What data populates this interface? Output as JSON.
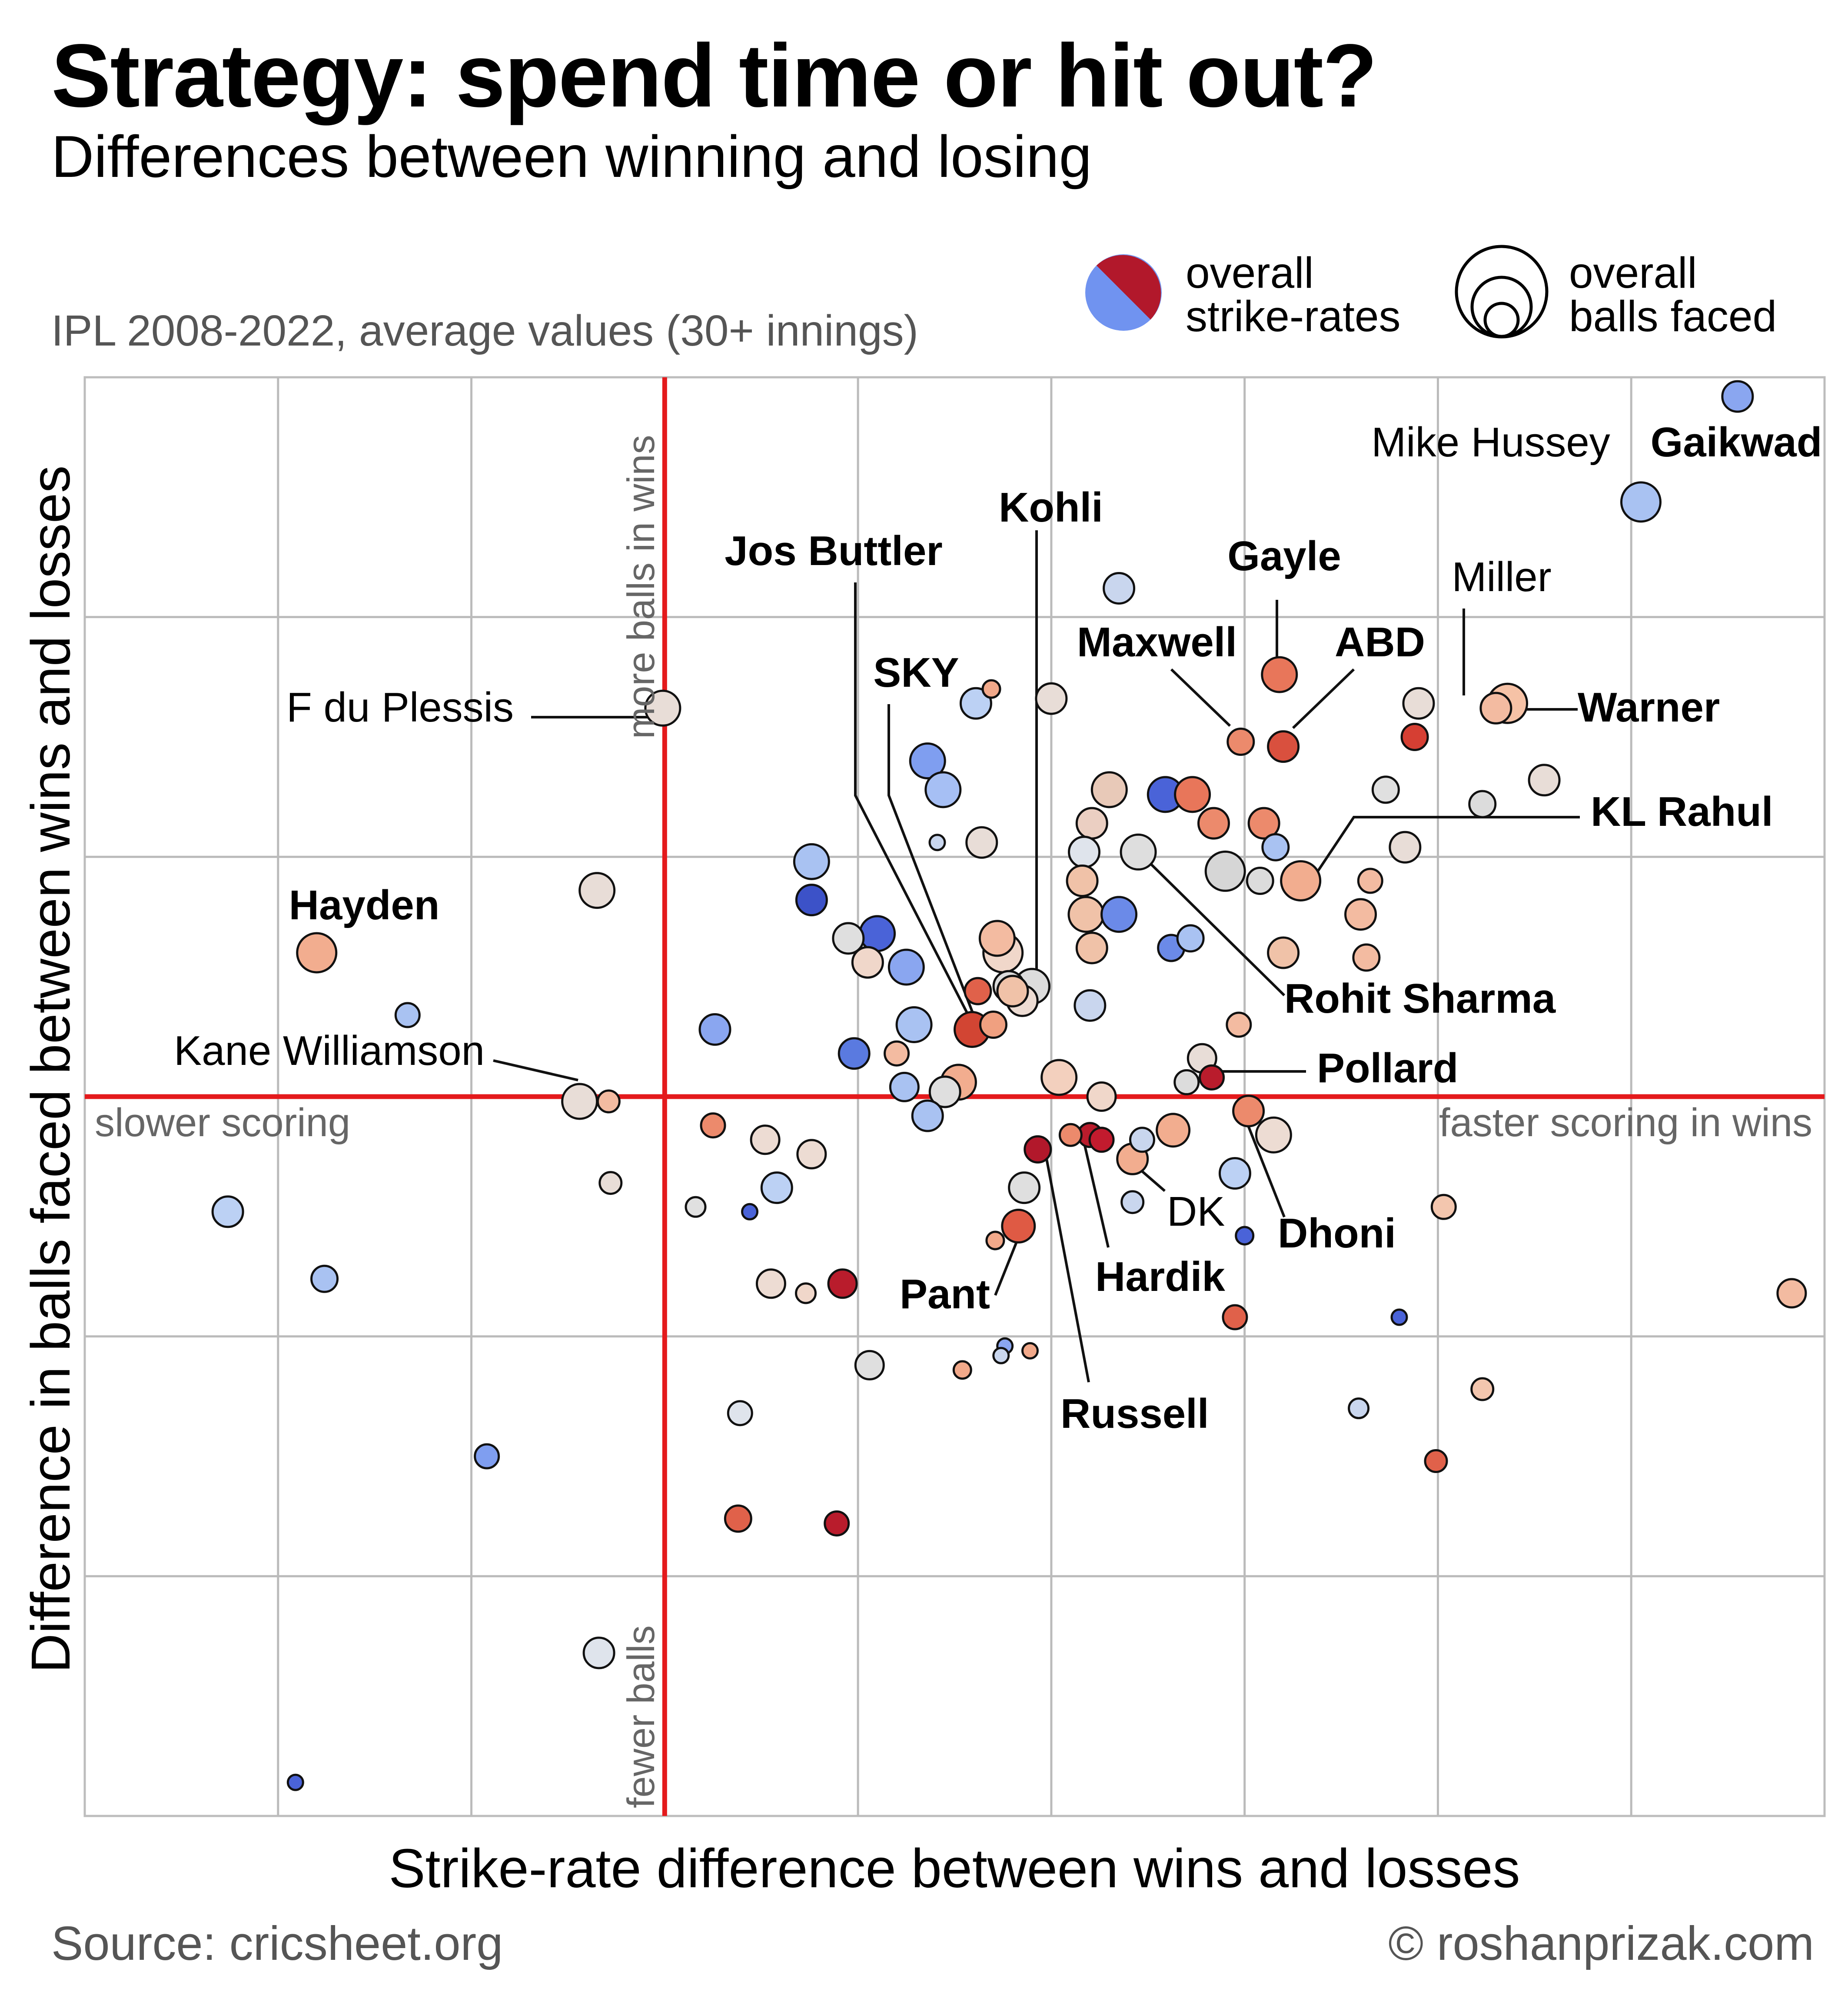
{
  "header": {
    "title": "Strategy: spend time or hit out?",
    "subtitle": "Differences between winning and losing",
    "note": "IPL 2008-2022, average values (30+ innings)"
  },
  "legend": {
    "color_label": [
      "overall",
      "strike-rates"
    ],
    "size_label": [
      "overall",
      "balls faced"
    ]
  },
  "footer": {
    "source": "Source: cricsheet.org",
    "credit": "© roshanprizak.com"
  },
  "colors": {
    "high_strike_rate": "#b2182b",
    "low_strike_rate": "#3b4cc0",
    "accent_line": "#e41a1c",
    "grid": "#bbbbbb"
  },
  "chart_data": {
    "type": "scatter",
    "title": "Strategy: spend time or hit out?",
    "subtitle": "Differences between winning and losing",
    "xlabel": "Strike-rate difference between wins and losses",
    "ylabel": "Difference in balls faced between wins and losses",
    "xlim": [
      -30,
      60
    ],
    "ylim": [
      -15,
      15
    ],
    "grid": true,
    "legend_position": "top-right",
    "quadrant_labels": {
      "right": "faster scoring in wins",
      "left": "slower scoring",
      "top": "more balls in wins",
      "bottom": "fewer balls"
    },
    "points": [
      {
        "x": 55.5,
        "y": 14.6,
        "size": 70,
        "color": "#8aa6f0",
        "label": "Gaikwad",
        "bold": true
      },
      {
        "x": 50.5,
        "y": 12.4,
        "size": 90,
        "color": "#a9c2f2",
        "label": "Mike Hussey",
        "bold": false
      },
      {
        "x": 23.5,
        "y": 10.6,
        "size": 70,
        "color": "#c9d6ee",
        "label": "",
        "bold": false
      },
      {
        "x": 31.8,
        "y": 8.8,
        "size": 80,
        "color": "#e8765a",
        "label": "Gayle",
        "bold": true
      },
      {
        "x": 43.0,
        "y": 8.1,
        "size": 70,
        "color": "#f3bba1",
        "label": "Miller",
        "bold": false
      },
      {
        "x": 43.6,
        "y": 8.2,
        "size": 90,
        "color": "#f6c2a6",
        "label": "Warner",
        "bold": true
      },
      {
        "x": 29.8,
        "y": 7.4,
        "size": 60,
        "color": "#ec8a6c",
        "label": "Maxwell",
        "bold": true
      },
      {
        "x": 32.0,
        "y": 7.3,
        "size": 70,
        "color": "#d9503e",
        "label": "ABD",
        "bold": true
      },
      {
        "x": 39.0,
        "y": 8.2,
        "size": 70,
        "color": "#e8ddd7",
        "label": "",
        "bold": false
      },
      {
        "x": 38.8,
        "y": 7.5,
        "size": 60,
        "color": "#d63f33",
        "label": "",
        "bold": false
      },
      {
        "x": 45.5,
        "y": 6.6,
        "size": 70,
        "color": "#e8ddd7",
        "label": "",
        "bold": false
      },
      {
        "x": 37.3,
        "y": 6.4,
        "size": 60,
        "color": "#e0e0e0",
        "label": "",
        "bold": false
      },
      {
        "x": 42.3,
        "y": 6.1,
        "size": 60,
        "color": "#dcdcdc",
        "label": "",
        "bold": false
      },
      {
        "x": 20.0,
        "y": 8.3,
        "size": 70,
        "color": "#e8ddd7",
        "label": "",
        "bold": false
      },
      {
        "x": -0.1,
        "y": 8.1,
        "size": 80,
        "color": "#e8ddd7",
        "label": "F du Plessis",
        "bold": false
      },
      {
        "x": 16.1,
        "y": 8.2,
        "size": 70,
        "color": "#bcd1f4",
        "label": "SKY",
        "bold": true
      },
      {
        "x": 16.9,
        "y": 8.5,
        "size": 40,
        "color": "#f2a98a",
        "label": "",
        "bold": false
      },
      {
        "x": 13.6,
        "y": 7.0,
        "size": 80,
        "color": "#7f9ef0",
        "label": "",
        "bold": false
      },
      {
        "x": 14.4,
        "y": 6.4,
        "size": 80,
        "color": "#a6bff4",
        "label": "",
        "bold": false
      },
      {
        "x": 14.1,
        "y": 5.3,
        "size": 35,
        "color": "#c9d6ee",
        "label": "",
        "bold": false
      },
      {
        "x": 23.0,
        "y": 6.4,
        "size": 80,
        "color": "#e8c9b8",
        "label": "",
        "bold": false
      },
      {
        "x": 25.9,
        "y": 6.3,
        "size": 80,
        "color": "#4a63d8",
        "label": "",
        "bold": false
      },
      {
        "x": 27.3,
        "y": 6.3,
        "size": 80,
        "color": "#e8765a",
        "label": "",
        "bold": false
      },
      {
        "x": 22.1,
        "y": 5.7,
        "size": 70,
        "color": "#ebcfc2",
        "label": "",
        "bold": false
      },
      {
        "x": 28.4,
        "y": 5.7,
        "size": 70,
        "color": "#ec8a6c",
        "label": "",
        "bold": false
      },
      {
        "x": 31.0,
        "y": 5.7,
        "size": 70,
        "color": "#ec8a6c",
        "label": "",
        "bold": false
      },
      {
        "x": 21.7,
        "y": 5.1,
        "size": 70,
        "color": "#dfe4ec",
        "label": "",
        "bold": false
      },
      {
        "x": 24.5,
        "y": 5.1,
        "size": 80,
        "color": "#dedede",
        "label": "Rohit Sharma",
        "bold": true
      },
      {
        "x": 31.6,
        "y": 5.2,
        "size": 60,
        "color": "#a9c2f2",
        "label": "",
        "bold": false
      },
      {
        "x": 29.0,
        "y": 4.7,
        "size": 90,
        "color": "#d6d6d6",
        "label": "",
        "bold": false
      },
      {
        "x": 32.9,
        "y": 4.5,
        "size": 90,
        "color": "#f2ad8f",
        "label": "KL Rahul",
        "bold": true
      },
      {
        "x": 36.5,
        "y": 4.5,
        "size": 55,
        "color": "#f3bba1",
        "label": "",
        "bold": false
      },
      {
        "x": 38.3,
        "y": 5.2,
        "size": 70,
        "color": "#e8ddd7",
        "label": "",
        "bold": false
      },
      {
        "x": 16.4,
        "y": 5.3,
        "size": 70,
        "color": "#e8ddd7",
        "label": "",
        "bold": false
      },
      {
        "x": 21.6,
        "y": 4.5,
        "size": 70,
        "color": "#f0c2a8",
        "label": "",
        "bold": false
      },
      {
        "x": 30.8,
        "y": 4.5,
        "size": 60,
        "color": "#dcdcdc",
        "label": "",
        "bold": false
      },
      {
        "x": 7.6,
        "y": 4.9,
        "size": 80,
        "color": "#a9c2f2",
        "label": "",
        "bold": false
      },
      {
        "x": 7.6,
        "y": 4.1,
        "size": 70,
        "color": "#3c52c8",
        "label": "",
        "bold": false
      },
      {
        "x": 21.8,
        "y": 3.8,
        "size": 80,
        "color": "#f0c2a8",
        "label": "",
        "bold": false
      },
      {
        "x": 23.5,
        "y": 3.8,
        "size": 80,
        "color": "#6b8ae8",
        "label": "",
        "bold": false
      },
      {
        "x": 26.2,
        "y": 3.1,
        "size": 60,
        "color": "#6b8ae8",
        "label": "",
        "bold": false
      },
      {
        "x": 27.2,
        "y": 3.3,
        "size": 60,
        "color": "#a9c2f2",
        "label": "",
        "bold": false
      },
      {
        "x": 36.0,
        "y": 3.8,
        "size": 70,
        "color": "#f3bba1",
        "label": "",
        "bold": false
      },
      {
        "x": 32.0,
        "y": 3.0,
        "size": 70,
        "color": "#f0c2a8",
        "label": "",
        "bold": false
      },
      {
        "x": 36.3,
        "y": 2.9,
        "size": 60,
        "color": "#f3bba1",
        "label": "",
        "bold": false
      },
      {
        "x": 22.1,
        "y": 3.1,
        "size": 70,
        "color": "#f0c2a8",
        "label": "",
        "bold": false
      },
      {
        "x": -3.5,
        "y": 4.3,
        "size": 80,
        "color": "#e8ddd7",
        "label": "",
        "bold": false
      },
      {
        "x": -18.0,
        "y": 3.0,
        "size": 90,
        "color": "#f2ad8f",
        "label": "Hayden",
        "bold": true
      },
      {
        "x": 9.5,
        "y": 3.3,
        "size": 70,
        "color": "#dfdfdf",
        "label": "",
        "bold": false
      },
      {
        "x": 11.0,
        "y": 3.4,
        "size": 80,
        "color": "#4a63d8",
        "label": "",
        "bold": false
      },
      {
        "x": 10.5,
        "y": 2.8,
        "size": 70,
        "color": "#f0d7ca",
        "label": "",
        "bold": false
      },
      {
        "x": 12.5,
        "y": 2.7,
        "size": 80,
        "color": "#8aa6f0",
        "label": "",
        "bold": false
      },
      {
        "x": 17.2,
        "y": 3.3,
        "size": 80,
        "color": "#f3bba1",
        "label": "",
        "bold": false
      },
      {
        "x": 17.5,
        "y": 3.0,
        "size": 90,
        "color": "#f0d7ca",
        "label": "",
        "bold": false
      },
      {
        "x": 16.2,
        "y": 2.2,
        "size": 60,
        "color": "#e0614a",
        "label": "Jos Buttler",
        "bold": true
      },
      {
        "x": 17.8,
        "y": 2.3,
        "size": 70,
        "color": "#dcdcdc",
        "label": "",
        "bold": false
      },
      {
        "x": 19.0,
        "y": 2.3,
        "size": 80,
        "color": "#dcdcdc",
        "label": "Kohli",
        "bold": true
      },
      {
        "x": 18.5,
        "y": 2.0,
        "size": 70,
        "color": "#eddcd3",
        "label": "",
        "bold": false
      },
      {
        "x": 18.0,
        "y": 2.2,
        "size": 70,
        "color": "#f0c2a8",
        "label": "",
        "bold": false
      },
      {
        "x": 22.0,
        "y": 1.9,
        "size": 70,
        "color": "#c9d6ee",
        "label": "",
        "bold": false
      },
      {
        "x": 12.9,
        "y": 1.5,
        "size": 80,
        "color": "#a9c2f2",
        "label": "",
        "bold": false
      },
      {
        "x": 15.9,
        "y": 1.4,
        "size": 80,
        "color": "#d24533",
        "label": "",
        "bold": false
      },
      {
        "x": 17.0,
        "y": 1.5,
        "size": 60,
        "color": "#f0a080",
        "label": "",
        "bold": false
      },
      {
        "x": -13.3,
        "y": 1.7,
        "size": 55,
        "color": "#a9c2f2",
        "label": "",
        "bold": false
      },
      {
        "x": 2.6,
        "y": 1.4,
        "size": 70,
        "color": "#8aa6f0",
        "label": "",
        "bold": false
      },
      {
        "x": 9.8,
        "y": 0.9,
        "size": 70,
        "color": "#5a7ae0",
        "label": "",
        "bold": false
      },
      {
        "x": 12.0,
        "y": 0.9,
        "size": 55,
        "color": "#f3bba1",
        "label": "",
        "bold": false
      },
      {
        "x": 29.7,
        "y": 1.5,
        "size": 55,
        "color": "#f3bba1",
        "label": "",
        "bold": false
      },
      {
        "x": 27.8,
        "y": 0.8,
        "size": 65,
        "color": "#e8ddd7",
        "label": "",
        "bold": false
      },
      {
        "x": 28.3,
        "y": 0.4,
        "size": 55,
        "color": "#b91c2c",
        "label": "Pollard",
        "bold": true
      },
      {
        "x": 27.0,
        "y": 0.3,
        "size": 55,
        "color": "#dcdcdc",
        "label": "",
        "bold": false
      },
      {
        "x": 20.4,
        "y": 0.4,
        "size": 80,
        "color": "#f3d0be",
        "label": "",
        "bold": false
      },
      {
        "x": 22.6,
        "y": 0.0,
        "size": 65,
        "color": "#f0d7ca",
        "label": "",
        "bold": false
      },
      {
        "x": 12.4,
        "y": 0.2,
        "size": 65,
        "color": "#a9c2f2",
        "label": "",
        "bold": false
      },
      {
        "x": 14.5,
        "y": 0.1,
        "size": 70,
        "color": "#dfdfdf",
        "label": "",
        "bold": false
      },
      {
        "x": 15.2,
        "y": 0.3,
        "size": 80,
        "color": "#f2ad8f",
        "label": "",
        "bold": false
      },
      {
        "x": 13.6,
        "y": -0.4,
        "size": 70,
        "color": "#a9c2f2",
        "label": "",
        "bold": false
      },
      {
        "x": -4.4,
        "y": -0.1,
        "size": 80,
        "color": "#e8ddd7",
        "label": "Kane Williamson",
        "bold": false
      },
      {
        "x": -2.9,
        "y": -0.1,
        "size": 50,
        "color": "#f3bba1",
        "label": "",
        "bold": false
      },
      {
        "x": 30.2,
        "y": -0.3,
        "size": 70,
        "color": "#ec8a6c",
        "label": "",
        "bold": false
      },
      {
        "x": 31.5,
        "y": -0.8,
        "size": 80,
        "color": "#eddcd3",
        "label": "Dhoni",
        "bold": true
      },
      {
        "x": 26.3,
        "y": -0.7,
        "size": 75,
        "color": "#f2ad8f",
        "label": "",
        "bold": false
      },
      {
        "x": 24.7,
        "y": -0.9,
        "size": 55,
        "color": "#c9d6ee",
        "label": "",
        "bold": false
      },
      {
        "x": 21.0,
        "y": -0.8,
        "size": 50,
        "color": "#ec8a6c",
        "label": "",
        "bold": false
      },
      {
        "x": 22.0,
        "y": -0.8,
        "size": 55,
        "color": "#b91c2c",
        "label": "Hardik",
        "bold": true
      },
      {
        "x": 22.6,
        "y": -0.9,
        "size": 55,
        "color": "#c21b2e",
        "label": "",
        "bold": false
      },
      {
        "x": 19.3,
        "y": -1.1,
        "size": 60,
        "color": "#b2182b",
        "label": "Russell",
        "bold": true
      },
      {
        "x": 24.2,
        "y": -1.3,
        "size": 70,
        "color": "#f2ad8f",
        "label": "DK",
        "bold": false
      },
      {
        "x": 2.5,
        "y": -0.6,
        "size": 55,
        "color": "#ec8a6c",
        "label": "",
        "bold": false
      },
      {
        "x": 5.2,
        "y": -0.9,
        "size": 65,
        "color": "#eddcd3",
        "label": "",
        "bold": false
      },
      {
        "x": 7.6,
        "y": -1.2,
        "size": 65,
        "color": "#eddcd3",
        "label": "",
        "bold": false
      },
      {
        "x": 5.8,
        "y": -1.9,
        "size": 70,
        "color": "#bcd1f4",
        "label": "",
        "bold": false
      },
      {
        "x": -2.8,
        "y": -1.8,
        "size": 50,
        "color": "#e8ddd7",
        "label": "",
        "bold": false
      },
      {
        "x": 29.5,
        "y": -1.6,
        "size": 70,
        "color": "#bcd1f4",
        "label": "",
        "bold": false
      },
      {
        "x": 18.6,
        "y": -1.9,
        "size": 70,
        "color": "#dfdfdf",
        "label": "",
        "bold": false
      },
      {
        "x": 24.2,
        "y": -2.2,
        "size": 50,
        "color": "#c9d6ee",
        "label": "",
        "bold": false
      },
      {
        "x": 18.3,
        "y": -2.7,
        "size": 75,
        "color": "#df5a44",
        "label": "Pant",
        "bold": true
      },
      {
        "x": 17.1,
        "y": -3.0,
        "size": 40,
        "color": "#f2a98a",
        "label": "",
        "bold": false
      },
      {
        "x": 30.0,
        "y": -2.9,
        "size": 40,
        "color": "#4a63d8",
        "label": "",
        "bold": false
      },
      {
        "x": 40.3,
        "y": -2.3,
        "size": 55,
        "color": "#f3c6ae",
        "label": "",
        "bold": false
      },
      {
        "x": 1.6,
        "y": -2.3,
        "size": 45,
        "color": "#e0e0e0",
        "label": "",
        "bold": false
      },
      {
        "x": 4.4,
        "y": -2.4,
        "size": 35,
        "color": "#4a63d8",
        "label": "",
        "bold": false
      },
      {
        "x": -22.6,
        "y": -2.4,
        "size": 70,
        "color": "#bcd1f4",
        "label": "",
        "bold": false
      },
      {
        "x": -17.6,
        "y": -3.8,
        "size": 60,
        "color": "#a9c2f2",
        "label": "",
        "bold": false
      },
      {
        "x": 5.5,
        "y": -3.9,
        "size": 65,
        "color": "#eddcd3",
        "label": "",
        "bold": false
      },
      {
        "x": 7.3,
        "y": -4.1,
        "size": 45,
        "color": "#f0d7ca",
        "label": "",
        "bold": false
      },
      {
        "x": 9.2,
        "y": -3.9,
        "size": 65,
        "color": "#b91c2c",
        "label": "",
        "bold": false
      },
      {
        "x": 29.5,
        "y": -4.6,
        "size": 55,
        "color": "#e0614a",
        "label": "",
        "bold": false
      },
      {
        "x": 38.0,
        "y": -4.6,
        "size": 35,
        "color": "#4a63d8",
        "label": "",
        "bold": false
      },
      {
        "x": 58.3,
        "y": -4.1,
        "size": 65,
        "color": "#f3bba1",
        "label": "",
        "bold": false
      },
      {
        "x": 17.6,
        "y": -5.2,
        "size": 35,
        "color": "#8aa6f0",
        "label": "",
        "bold": false
      },
      {
        "x": 17.4,
        "y": -5.4,
        "size": 35,
        "color": "#c9d6ee",
        "label": "",
        "bold": false
      },
      {
        "x": 18.9,
        "y": -5.3,
        "size": 35,
        "color": "#f2a98a",
        "label": "",
        "bold": false
      },
      {
        "x": 10.6,
        "y": -5.6,
        "size": 65,
        "color": "#dfdfdf",
        "label": "",
        "bold": false
      },
      {
        "x": 15.4,
        "y": -5.7,
        "size": 40,
        "color": "#f2a98a",
        "label": "",
        "bold": false
      },
      {
        "x": -9.2,
        "y": -7.5,
        "size": 55,
        "color": "#7f9ef0",
        "label": "",
        "bold": false
      },
      {
        "x": 3.9,
        "y": -6.6,
        "size": 55,
        "color": "#dfe4ec",
        "label": "",
        "bold": false
      },
      {
        "x": 35.9,
        "y": -6.5,
        "size": 45,
        "color": "#c9d6ee",
        "label": "",
        "bold": false
      },
      {
        "x": 39.9,
        "y": -7.6,
        "size": 50,
        "color": "#e0614a",
        "label": "",
        "bold": false
      },
      {
        "x": 42.3,
        "y": -6.1,
        "size": 50,
        "color": "#f3c6ae",
        "label": "",
        "bold": false
      },
      {
        "x": 3.8,
        "y": -8.8,
        "size": 60,
        "color": "#e0614a",
        "label": "",
        "bold": false
      },
      {
        "x": 8.9,
        "y": -8.9,
        "size": 55,
        "color": "#b91c2c",
        "label": "",
        "bold": false
      },
      {
        "x": -3.4,
        "y": -11.6,
        "size": 70,
        "color": "#dfe4ec",
        "label": "",
        "bold": false
      },
      {
        "x": -19.1,
        "y": -14.3,
        "size": 35,
        "color": "#4a63d8",
        "label": "",
        "bold": false
      }
    ]
  }
}
